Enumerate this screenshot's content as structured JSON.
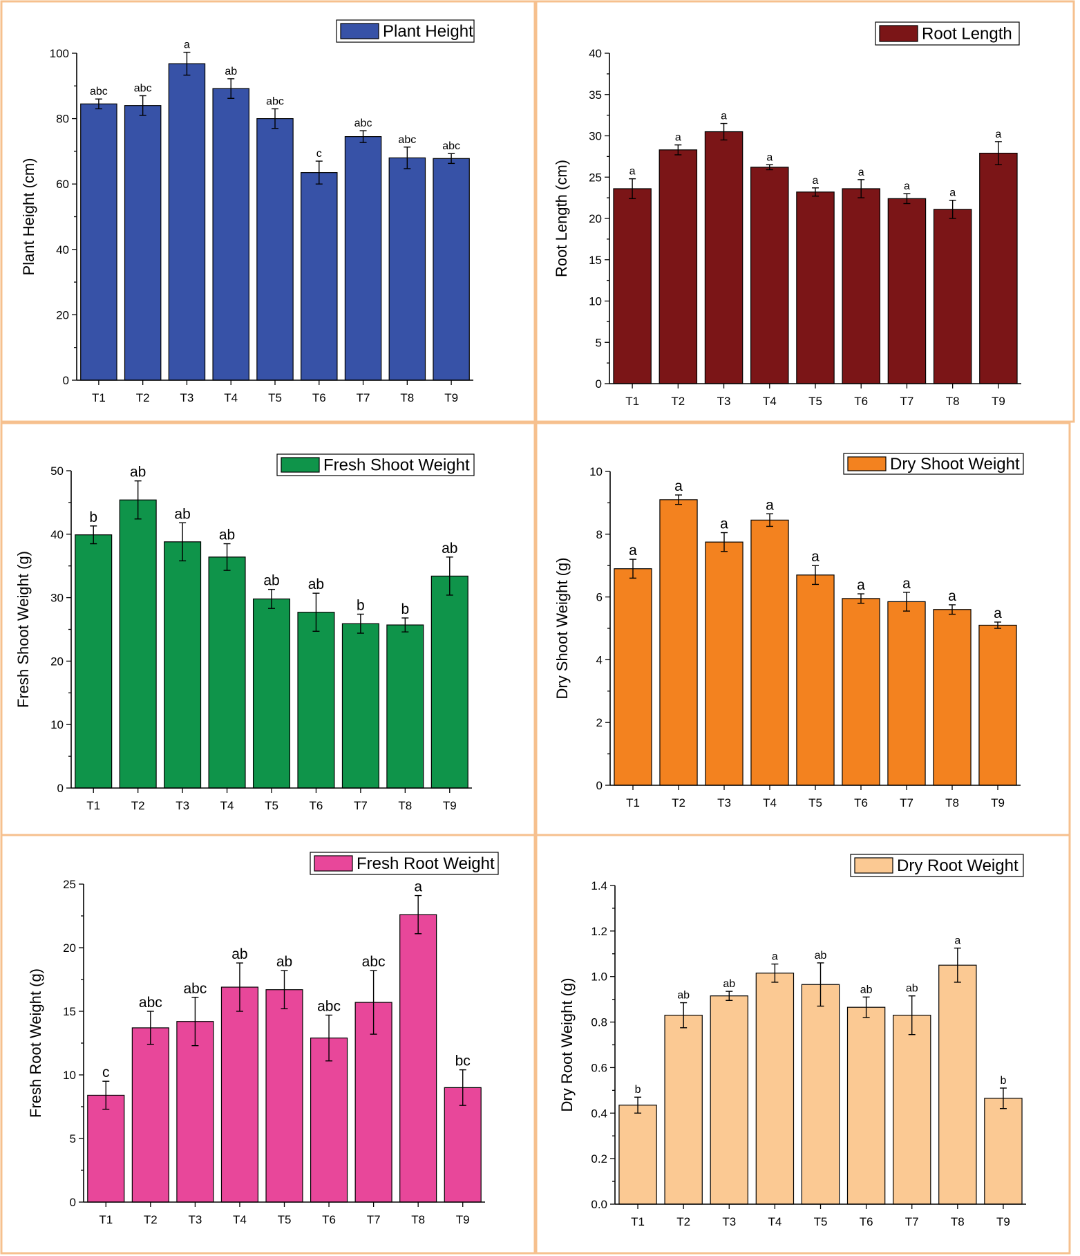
{
  "chart_data": [
    {
      "type": "bar",
      "title": "Plant Height",
      "legend": "Plant Height",
      "ylabel": "Plant Height (cm)",
      "xlabel": "",
      "color": "#3752a7",
      "categories": [
        "T1",
        "T2",
        "T3",
        "T4",
        "T5",
        "T6",
        "T7",
        "T8",
        "T9"
      ],
      "values": [
        84.5,
        84,
        96.8,
        89.2,
        80,
        63.5,
        74.5,
        68,
        67.8
      ],
      "errors": [
        1.5,
        3,
        3.5,
        3,
        3,
        3.5,
        1.8,
        3.3,
        1.5
      ],
      "letters": [
        "abc",
        "abc",
        "a",
        "ab",
        "abc",
        "c",
        "abc",
        "abc",
        "abc"
      ],
      "ylim": [
        0,
        100
      ],
      "yticks": [
        "0",
        "20",
        "40",
        "60",
        "80",
        "100"
      ],
      "legend_position": "top-right"
    },
    {
      "type": "bar",
      "title": "Root Length",
      "legend": "Root Length",
      "ylabel": "Root Length (cm)",
      "xlabel": "",
      "color": "#7b1517",
      "categories": [
        "T1",
        "T2",
        "T3",
        "T4",
        "T5",
        "T6",
        "T7",
        "T8",
        "T9"
      ],
      "values": [
        23.6,
        28.3,
        30.5,
        26.2,
        23.2,
        23.6,
        22.4,
        21.1,
        27.9
      ],
      "errors": [
        1.2,
        0.6,
        1.0,
        0.3,
        0.5,
        1.1,
        0.6,
        1.1,
        1.4
      ],
      "letters": [
        "a",
        "a",
        "a",
        "a",
        "a",
        "a",
        "a",
        "a",
        "a"
      ],
      "ylim": [
        0,
        40
      ],
      "yticks": [
        "0",
        "5",
        "10",
        "15",
        "20",
        "25",
        "30",
        "35",
        "40"
      ],
      "legend_position": "top-right"
    },
    {
      "type": "bar",
      "title": "Fresh Shoot Weight",
      "legend": "Fresh Shoot Weight",
      "ylabel": "Fresh Shoot Weight (g)",
      "xlabel": "",
      "color": "#0f944a",
      "categories": [
        "T1",
        "T2",
        "T3",
        "T4",
        "T5",
        "T6",
        "T7",
        "T8",
        "T9"
      ],
      "values": [
        39.9,
        45.4,
        38.8,
        36.4,
        29.8,
        27.7,
        25.9,
        25.7,
        33.4
      ],
      "errors": [
        1.4,
        3.0,
        3.0,
        2.1,
        1.5,
        3.0,
        1.5,
        1.1,
        3.0
      ],
      "letters": [
        "b",
        "ab",
        "ab",
        "ab",
        "ab",
        "ab",
        "b",
        "b",
        "ab"
      ],
      "ylim": [
        0,
        50
      ],
      "yticks": [
        "0",
        "10",
        "20",
        "30",
        "40",
        "50"
      ],
      "legend_position": "top-right"
    },
    {
      "type": "bar",
      "title": "Dry Shoot Weight",
      "legend": "Dry Shoot Weight",
      "ylabel": "Dry Shoot Weight (g)",
      "xlabel": "",
      "color": "#f3821f",
      "categories": [
        "T1",
        "T2",
        "T3",
        "T4",
        "T5",
        "T6",
        "T7",
        "T8",
        "T9"
      ],
      "values": [
        6.9,
        9.1,
        7.75,
        8.45,
        6.7,
        5.95,
        5.85,
        5.6,
        5.1
      ],
      "errors": [
        0.3,
        0.15,
        0.3,
        0.2,
        0.3,
        0.15,
        0.3,
        0.15,
        0.1
      ],
      "letters": [
        "a",
        "a",
        "a",
        "a",
        "a",
        "a",
        "a",
        "a",
        "a"
      ],
      "ylim": [
        0,
        10
      ],
      "yticks": [
        "0",
        "2",
        "4",
        "6",
        "8",
        "10"
      ],
      "legend_position": "top-right"
    },
    {
      "type": "bar",
      "title": "Fresh Root Weight",
      "legend": "Fresh Root Weight",
      "ylabel": "Fresh Root Weight (g)",
      "xlabel": "",
      "color": "#e8479a",
      "categories": [
        "T1",
        "T2",
        "T3",
        "T4",
        "T5",
        "T6",
        "T7",
        "T8",
        "T9"
      ],
      "values": [
        8.4,
        13.7,
        14.2,
        16.9,
        16.7,
        12.9,
        15.7,
        22.6,
        9.0
      ],
      "errors": [
        1.1,
        1.3,
        1.9,
        1.9,
        1.5,
        1.8,
        2.5,
        1.5,
        1.4
      ],
      "letters": [
        "c",
        "abc",
        "abc",
        "ab",
        "ab",
        "abc",
        "abc",
        "a",
        "bc"
      ],
      "ylim": [
        0,
        25
      ],
      "yticks": [
        "0",
        "5",
        "10",
        "15",
        "20",
        "25"
      ],
      "legend_position": "top-right"
    },
    {
      "type": "bar",
      "title": "Dry Root Weight",
      "legend": "Dry Root Weight",
      "ylabel": "Dry Root Weight (g)",
      "xlabel": "",
      "color": "#fbc993",
      "categories": [
        "T1",
        "T2",
        "T3",
        "T4",
        "T5",
        "T6",
        "T7",
        "T8",
        "T9"
      ],
      "values": [
        0.435,
        0.83,
        0.915,
        1.015,
        0.965,
        0.865,
        0.83,
        1.05,
        0.465
      ],
      "errors": [
        0.035,
        0.055,
        0.02,
        0.04,
        0.095,
        0.045,
        0.085,
        0.075,
        0.045
      ],
      "letters": [
        "b",
        "ab",
        "ab",
        "a",
        "ab",
        "ab",
        "ab",
        "a",
        "b"
      ],
      "ylim": [
        0,
        1.4
      ],
      "yticks": [
        "0.0",
        "0.2",
        "0.4",
        "0.6",
        "0.8",
        "1.0",
        "1.2",
        "1.4"
      ],
      "legend_position": "top-right"
    }
  ]
}
